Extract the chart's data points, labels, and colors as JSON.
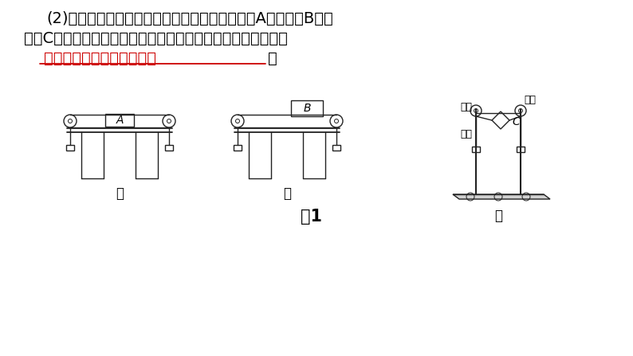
{
  "bg_color": "#ffffff",
  "text_line1": "(2)小明和同学设计了甲、乙、丙三个方案，其中A为小车、B为木",
  "text_line2": "块、C为轻质硬卡片。经过讨论，小明最终选择丙方案，理由是",
  "answer_text": "可以减小摩擦对实验的影响",
  "period_text": "。",
  "label_jia": "甲",
  "label_yi": "乙",
  "label_bing": "丙",
  "label_A": "A",
  "label_B": "B",
  "label_C": "C",
  "label_huanlun": "滑轮",
  "label_gouwa": "钉码",
  "label_kapian": "卡片",
  "fig_label": "图1",
  "line_color": "#222222",
  "text_color": "#000000",
  "answer_color": "#cc0000",
  "underline_color": "#cc0000",
  "font_size_main": 14,
  "font_size_label": 12,
  "font_size_fig": 15,
  "font_size_small": 9
}
